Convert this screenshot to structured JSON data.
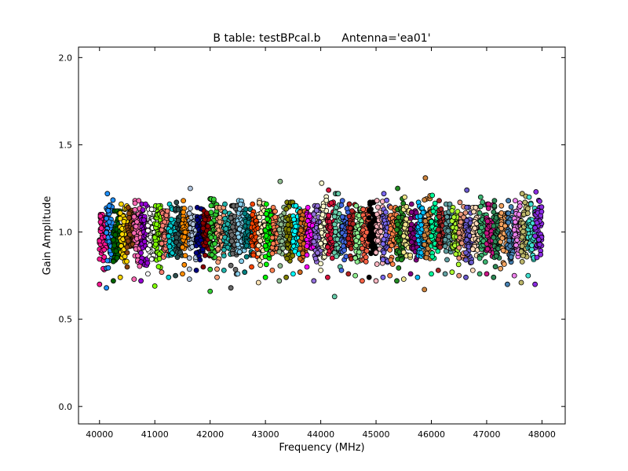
{
  "chart_data": {
    "type": "scatter",
    "title": "B table: testBPcal.b      Antenna='ea01'",
    "xlabel": "Frequency (MHz)",
    "ylabel": "Gain Amplitude",
    "xlim": [
      39620,
      48420
    ],
    "ylim": [
      -0.1,
      2.06
    ],
    "xticks": [
      40000,
      41000,
      42000,
      43000,
      44000,
      45000,
      46000,
      47000,
      48000
    ],
    "xtick_labels": [
      "40000",
      "41000",
      "42000",
      "43000",
      "44000",
      "45000",
      "46000",
      "47000",
      "48000"
    ],
    "yticks": [
      0.0,
      0.5,
      1.0,
      1.5,
      2.0
    ],
    "ytick_labels": [
      "0.0",
      "0.5",
      "1.0",
      "1.5",
      "2.0"
    ],
    "grid": false,
    "legend": "none",
    "marker": "circle",
    "marker_edge_color": "#000000",
    "freq_start": 40000,
    "freq_end": 48000,
    "spw_count": 64,
    "channels_per_spw": 8,
    "value_center": 1.0,
    "colors": [
      "#ff1493",
      "#1e90ff",
      "#006400",
      "#ffd700",
      "#8b4513",
      "#ff69b4",
      "#9400d3",
      "#ffffff",
      "#7fff00",
      "#fa8072",
      "#00ced1",
      "#2f4f4f",
      "#ff8c00",
      "#b0c4de",
      "#000080",
      "#8b0000",
      "#32cd32",
      "#ffa07a",
      "#20b2aa",
      "#696969",
      "#87ceeb",
      "#008080",
      "#ff4500",
      "#ffe4b5",
      "#00ff00",
      "#ff7f50",
      "#8fbc8f",
      "#808000",
      "#00ffff",
      "#d2691e",
      "#ff00ff",
      "#9370db",
      "#fffacd",
      "#dc143c",
      "#66cdaa",
      "#4169e1",
      "#b22222",
      "#90ee90",
      "#ff6347",
      "#000000",
      "#ffb6c1",
      "#7b68ee",
      "#ff8247",
      "#228b22",
      "#f0e68c",
      "#800080",
      "#00bfff",
      "#cd853f",
      "#00fa9a",
      "#a52a2a",
      "#5f9ea0",
      "#adff2f",
      "#e9967a",
      "#6a5acd",
      "#ffdab9",
      "#3cb371",
      "#c71585",
      "#2e8b57",
      "#f4a460",
      "#4682b4",
      "#ee82ee",
      "#bdb76b",
      "#40e0d0",
      "#8a2be2"
    ],
    "spw_ranges": [
      [
        0.7,
        1.1
      ],
      [
        0.68,
        1.22
      ],
      [
        0.72,
        1.12
      ],
      [
        0.74,
        1.16
      ],
      [
        0.8,
        1.14
      ],
      [
        0.73,
        1.18
      ],
      [
        0.72,
        1.16
      ],
      [
        0.76,
        1.13
      ],
      [
        0.69,
        1.15
      ],
      [
        0.77,
        1.12
      ],
      [
        0.74,
        1.16
      ],
      [
        0.75,
        1.17
      ],
      [
        0.76,
        1.18
      ],
      [
        0.73,
        1.25
      ],
      [
        0.78,
        1.14
      ],
      [
        0.8,
        1.12
      ],
      [
        0.66,
        1.19
      ],
      [
        0.74,
        1.14
      ],
      [
        0.78,
        1.16
      ],
      [
        0.68,
        1.15
      ],
      [
        0.76,
        1.18
      ],
      [
        0.77,
        1.13
      ],
      [
        0.8,
        1.16
      ],
      [
        0.71,
        1.18
      ],
      [
        0.74,
        1.16
      ],
      [
        0.78,
        1.14
      ],
      [
        0.72,
        1.29
      ],
      [
        0.74,
        1.17
      ],
      [
        0.76,
        1.15
      ],
      [
        0.77,
        1.12
      ],
      [
        0.8,
        1.14
      ],
      [
        0.72,
        1.15
      ],
      [
        0.78,
        1.28
      ],
      [
        0.74,
        1.24
      ],
      [
        0.63,
        1.22
      ],
      [
        0.78,
        1.18
      ],
      [
        0.76,
        1.16
      ],
      [
        0.75,
        1.15
      ],
      [
        0.72,
        1.13
      ],
      [
        0.74,
        1.17
      ],
      [
        0.72,
        1.18
      ],
      [
        0.74,
        1.22
      ],
      [
        0.75,
        1.14
      ],
      [
        0.72,
        1.25
      ],
      [
        0.73,
        1.2
      ],
      [
        0.76,
        1.16
      ],
      [
        0.74,
        1.17
      ],
      [
        0.67,
        1.31
      ],
      [
        0.76,
        1.21
      ],
      [
        0.78,
        1.18
      ],
      [
        0.76,
        1.16
      ],
      [
        0.77,
        1.14
      ],
      [
        0.75,
        1.17
      ],
      [
        0.74,
        1.24
      ],
      [
        0.78,
        1.14
      ],
      [
        0.76,
        1.2
      ],
      [
        0.76,
        1.16
      ],
      [
        0.74,
        1.18
      ],
      [
        0.79,
        1.15
      ],
      [
        0.7,
        1.18
      ],
      [
        0.75,
        1.18
      ],
      [
        0.71,
        1.22
      ],
      [
        0.75,
        1.2
      ],
      [
        0.7,
        1.23
      ]
    ]
  }
}
